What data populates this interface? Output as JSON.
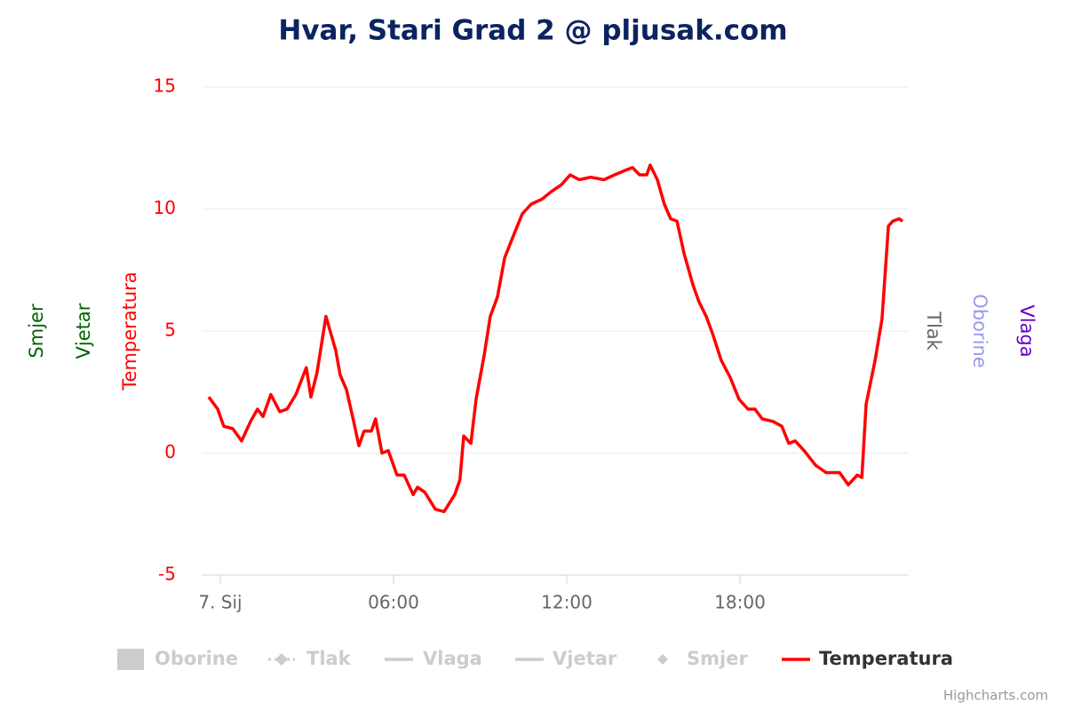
{
  "chart_data": {
    "type": "line",
    "title": "Hvar, Stari Grad 2 @ pljusak.com",
    "credits": "Highcharts.com",
    "legend": [
      "Oborine",
      "Tlak",
      "Vlaga",
      "Vjetar",
      "Smjer",
      "Temperatura"
    ],
    "active_legend": 5,
    "y_axis_titles": [
      {
        "text": "Smjer",
        "color": "#006400",
        "side": "left"
      },
      {
        "text": "Vjetar",
        "color": "#006400",
        "side": "left"
      },
      {
        "text": "Temperatura",
        "color": "#ff0000",
        "side": "left"
      },
      {
        "text": "Tlak",
        "color": "#666666",
        "side": "right"
      },
      {
        "text": "Oborine",
        "color": "#9999ee",
        "side": "right"
      },
      {
        "text": "Vlaga",
        "color": "#6600cc",
        "side": "right"
      }
    ],
    "xlim": [
      -0.615,
      23.846
    ],
    "xticks": [
      {
        "value": 0,
        "label": "7. Sij"
      },
      {
        "value": 6,
        "label": "06:00"
      },
      {
        "value": 12,
        "label": "12:00"
      },
      {
        "value": 18,
        "label": "18:00"
      }
    ],
    "ylim": [
      -5,
      15
    ],
    "yticks": [
      -5,
      0,
      5,
      10,
      15
    ],
    "grid": true,
    "series": [
      {
        "name": "Temperatura",
        "color": "#ff0000",
        "x": [
          -0.4,
          -0.09,
          0.12,
          0.43,
          0.74,
          1.05,
          1.29,
          1.48,
          1.75,
          2.06,
          2.31,
          2.62,
          2.98,
          3.14,
          3.35,
          3.66,
          4.0,
          4.15,
          4.37,
          4.62,
          4.8,
          4.98,
          5.23,
          5.38,
          5.6,
          5.82,
          6.12,
          6.37,
          6.68,
          6.83,
          7.08,
          7.45,
          7.75,
          8.12,
          8.3,
          8.43,
          8.68,
          8.86,
          9.14,
          9.35,
          9.6,
          9.85,
          10.15,
          10.46,
          10.77,
          11.14,
          11.45,
          11.82,
          12.12,
          12.43,
          12.83,
          13.29,
          13.66,
          14.06,
          14.28,
          14.52,
          14.77,
          14.89,
          15.14,
          15.38,
          15.6,
          15.82,
          16.06,
          16.37,
          16.58,
          16.83,
          17.05,
          17.35,
          17.66,
          17.97,
          18.28,
          18.52,
          18.77,
          19.14,
          19.45,
          19.69,
          19.91,
          20.22,
          20.62,
          20.98,
          21.45,
          21.75,
          22.06,
          22.22,
          22.37,
          22.68,
          22.92,
          23.14,
          23.29,
          23.51,
          23.63
        ],
        "values": [
          2.3,
          1.8,
          1.1,
          1.0,
          0.5,
          1.3,
          1.8,
          1.5,
          2.4,
          1.7,
          1.8,
          2.4,
          3.5,
          2.3,
          3.3,
          5.6,
          4.2,
          3.2,
          2.6,
          1.3,
          0.3,
          0.9,
          0.9,
          1.4,
          0,
          0.1,
          -0.9,
          -0.9,
          -1.7,
          -1.4,
          -1.6,
          -2.3,
          -2.4,
          -1.7,
          -1.1,
          0.7,
          0.4,
          2.2,
          4.0,
          5.6,
          6.4,
          8.0,
          8.9,
          9.8,
          10.2,
          10.4,
          10.7,
          11.0,
          11.4,
          11.2,
          11.3,
          11.2,
          11.4,
          11.6,
          11.7,
          11.4,
          11.4,
          11.8,
          11.2,
          10.2,
          9.6,
          9.5,
          8.2,
          6.9,
          6.2,
          5.6,
          4.9,
          3.8,
          3.1,
          2.2,
          1.8,
          1.8,
          1.4,
          1.3,
          1.1,
          0.4,
          0.5,
          0.1,
          -0.5,
          -0.8,
          -0.8,
          -1.3,
          -0.9,
          -1.0,
          2.0,
          3.8,
          5.5,
          9.3,
          9.5,
          9.6,
          9.5
        ]
      }
    ]
  }
}
